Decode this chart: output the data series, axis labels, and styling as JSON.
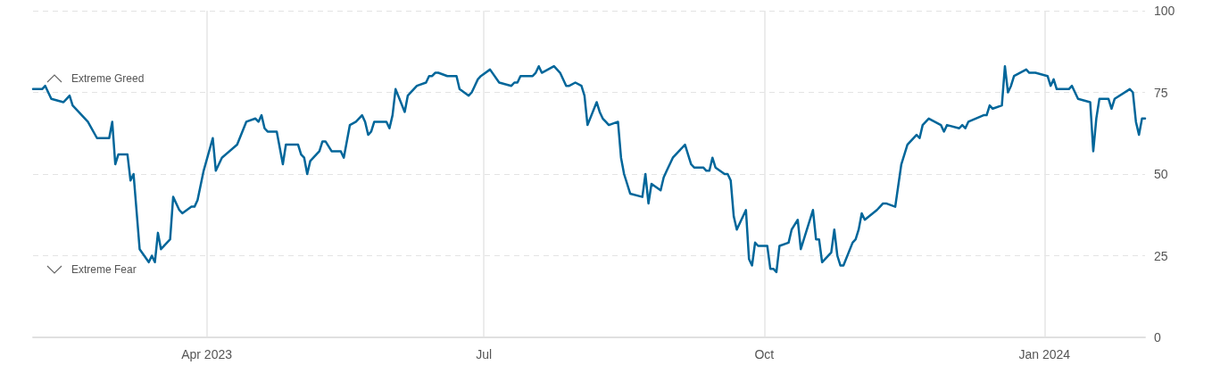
{
  "chart_data": {
    "type": "line",
    "annotations": [
      "Extreme Greed",
      "Extreme Fear"
    ],
    "x": [
      "2023-02-03",
      "2023-02-06",
      "2023-02-07",
      "2023-02-09",
      "2023-02-13",
      "2023-02-14",
      "2023-02-15",
      "2023-02-16",
      "2023-02-21",
      "2023-02-24",
      "2023-02-26",
      "2023-02-28",
      "2023-03-01",
      "2023-03-02",
      "2023-03-03",
      "2023-03-06",
      "2023-03-07",
      "2023-03-08",
      "2023-03-10",
      "2023-03-13",
      "2023-03-14",
      "2023-03-15",
      "2023-03-16",
      "2023-03-17",
      "2023-03-20",
      "2023-03-21",
      "2023-03-23",
      "2023-03-24",
      "2023-03-27",
      "2023-03-28",
      "2023-03-29",
      "2023-03-31",
      "2023-04-03",
      "2023-04-04",
      "2023-04-06",
      "2023-04-11",
      "2023-04-14",
      "2023-04-17",
      "2023-04-18",
      "2023-04-19",
      "2023-04-20",
      "2023-04-21",
      "2023-04-24",
      "2023-04-26",
      "2023-04-27",
      "2023-04-28",
      "2023-05-01",
      "2023-05-02",
      "2023-05-03",
      "2023-05-04",
      "2023-05-05",
      "2023-05-08",
      "2023-05-09",
      "2023-05-10",
      "2023-05-12",
      "2023-05-15",
      "2023-05-16",
      "2023-05-18",
      "2023-05-20",
      "2023-05-22",
      "2023-05-23",
      "2023-05-24",
      "2023-05-25",
      "2023-05-26",
      "2023-05-30",
      "2023-05-31",
      "2023-06-01",
      "2023-06-02",
      "2023-06-05",
      "2023-06-06",
      "2023-06-09",
      "2023-06-12",
      "2023-06-13",
      "2023-06-14",
      "2023-06-15",
      "2023-06-16",
      "2023-06-19",
      "2023-06-22",
      "2023-06-23",
      "2023-06-26",
      "2023-06-27",
      "2023-06-28",
      "2023-06-29",
      "2023-06-30",
      "2023-07-03",
      "2023-07-06",
      "2023-07-10",
      "2023-07-11",
      "2023-07-12",
      "2023-07-13",
      "2023-07-17",
      "2023-07-18",
      "2023-07-19",
      "2023-07-20",
      "2023-07-24",
      "2023-07-26",
      "2023-07-28",
      "2023-07-29",
      "2023-07-31",
      "2023-08-02",
      "2023-08-03",
      "2023-08-04",
      "2023-08-07",
      "2023-08-08",
      "2023-08-09",
      "2023-08-10",
      "2023-08-11",
      "2023-08-14",
      "2023-08-15",
      "2023-08-16",
      "2023-08-18",
      "2023-08-22",
      "2023-08-23",
      "2023-08-24",
      "2023-08-25",
      "2023-08-28",
      "2023-08-29",
      "2023-08-30",
      "2023-09-01",
      "2023-09-05",
      "2023-09-07",
      "2023-09-08",
      "2023-09-11",
      "2023-09-12",
      "2023-09-13",
      "2023-09-14",
      "2023-09-15",
      "2023-09-18",
      "2023-09-19",
      "2023-09-20",
      "2023-09-21",
      "2023-09-22",
      "2023-09-25",
      "2023-09-26",
      "2023-09-27",
      "2023-09-28",
      "2023-09-29",
      "2023-10-02",
      "2023-10-03",
      "2023-10-04",
      "2023-10-05",
      "2023-10-06",
      "2023-10-09",
      "2023-10-10",
      "2023-10-12",
      "2023-10-13",
      "2023-10-17",
      "2023-10-18",
      "2023-10-19",
      "2023-10-20",
      "2023-10-23",
      "2023-10-24",
      "2023-10-25",
      "2023-10-26",
      "2023-10-27",
      "2023-10-30",
      "2023-10-31",
      "2023-11-01",
      "2023-11-02",
      "2023-11-03",
      "2023-11-07",
      "2023-11-08",
      "2023-11-09",
      "2023-11-10",
      "2023-11-13",
      "2023-11-15",
      "2023-11-17",
      "2023-11-20",
      "2023-11-21",
      "2023-11-22",
      "2023-11-24",
      "2023-11-28",
      "2023-11-29",
      "2023-11-30",
      "2023-12-04",
      "2023-12-05",
      "2023-12-06",
      "2023-12-07",
      "2023-12-12",
      "2023-12-13",
      "2023-12-14",
      "2023-12-15",
      "2023-12-18",
      "2023-12-19",
      "2023-12-20",
      "2023-12-21",
      "2023-12-22",
      "2023-12-26",
      "2023-12-27",
      "2023-12-28",
      "2023-12-29",
      "2024-01-02",
      "2024-01-03",
      "2024-01-04",
      "2024-01-05",
      "2024-01-08",
      "2024-01-09",
      "2024-01-10",
      "2024-01-12",
      "2024-01-16",
      "2024-01-17",
      "2024-01-18",
      "2024-01-19",
      "2024-01-22",
      "2024-01-23",
      "2024-01-24",
      "2024-01-29",
      "2024-01-30",
      "2024-01-31",
      "2024-02-01",
      "2024-02-02",
      "2024-02-03"
    ],
    "values": [
      76,
      76,
      77,
      73,
      72,
      73,
      74,
      71,
      66,
      61,
      61,
      61,
      66,
      53,
      56,
      56,
      48,
      50,
      27,
      23,
      25,
      23,
      32,
      27,
      30,
      43,
      39,
      38,
      40,
      40,
      42,
      51,
      61,
      51,
      55,
      59,
      66,
      67,
      66,
      68,
      64,
      63,
      63,
      53,
      59,
      59,
      59,
      56,
      55,
      50,
      54,
      57,
      60,
      60,
      57,
      57,
      55,
      65,
      66,
      68,
      66,
      62,
      63,
      66,
      66,
      64,
      68,
      76,
      69,
      74,
      77,
      78,
      80,
      80,
      81,
      81,
      80,
      80,
      76,
      74,
      75,
      77,
      79,
      80,
      82,
      78,
      77,
      78,
      78,
      80,
      80,
      81,
      83,
      81,
      83,
      81,
      77,
      77,
      78,
      77,
      74,
      65,
      72,
      69,
      67,
      66,
      65,
      66,
      55,
      50,
      44,
      43,
      50,
      41,
      47,
      45,
      49,
      51,
      55,
      59,
      53,
      52,
      52,
      51,
      51,
      55,
      52,
      50,
      50,
      48,
      37,
      33,
      39,
      24,
      22,
      29,
      28,
      28,
      21,
      21,
      20,
      28,
      29,
      33,
      36,
      27,
      39,
      30,
      30,
      23,
      26,
      33,
      25,
      22,
      22,
      29,
      30,
      33,
      38,
      36,
      39,
      40,
      41,
      41,
      40,
      53,
      59,
      62,
      61,
      65,
      67,
      65,
      63,
      65,
      64,
      65,
      64,
      66,
      68,
      68,
      71,
      70,
      71,
      83,
      75,
      77,
      80,
      82,
      81,
      81,
      81,
      80,
      77,
      79,
      76,
      76,
      76,
      77,
      73,
      72,
      57,
      67,
      73,
      73,
      70,
      73,
      76,
      75,
      66,
      62,
      67,
      67
    ],
    "color": "#00669a",
    "line_style": "solid",
    "marker": "none",
    "xlim": [
      "2023-02-03",
      "2024-02-03"
    ],
    "xticks": [
      {
        "value": "2023-04-01",
        "label": "Apr 2023"
      },
      {
        "value": "2023-07-01",
        "label": "Jul"
      },
      {
        "value": "2023-10-01",
        "label": "Oct"
      },
      {
        "value": "2024-01-01",
        "label": "Jan 2024"
      }
    ],
    "ylim": [
      0,
      100
    ],
    "yticks": [
      0,
      25,
      50,
      75,
      100
    ],
    "grid": true
  }
}
